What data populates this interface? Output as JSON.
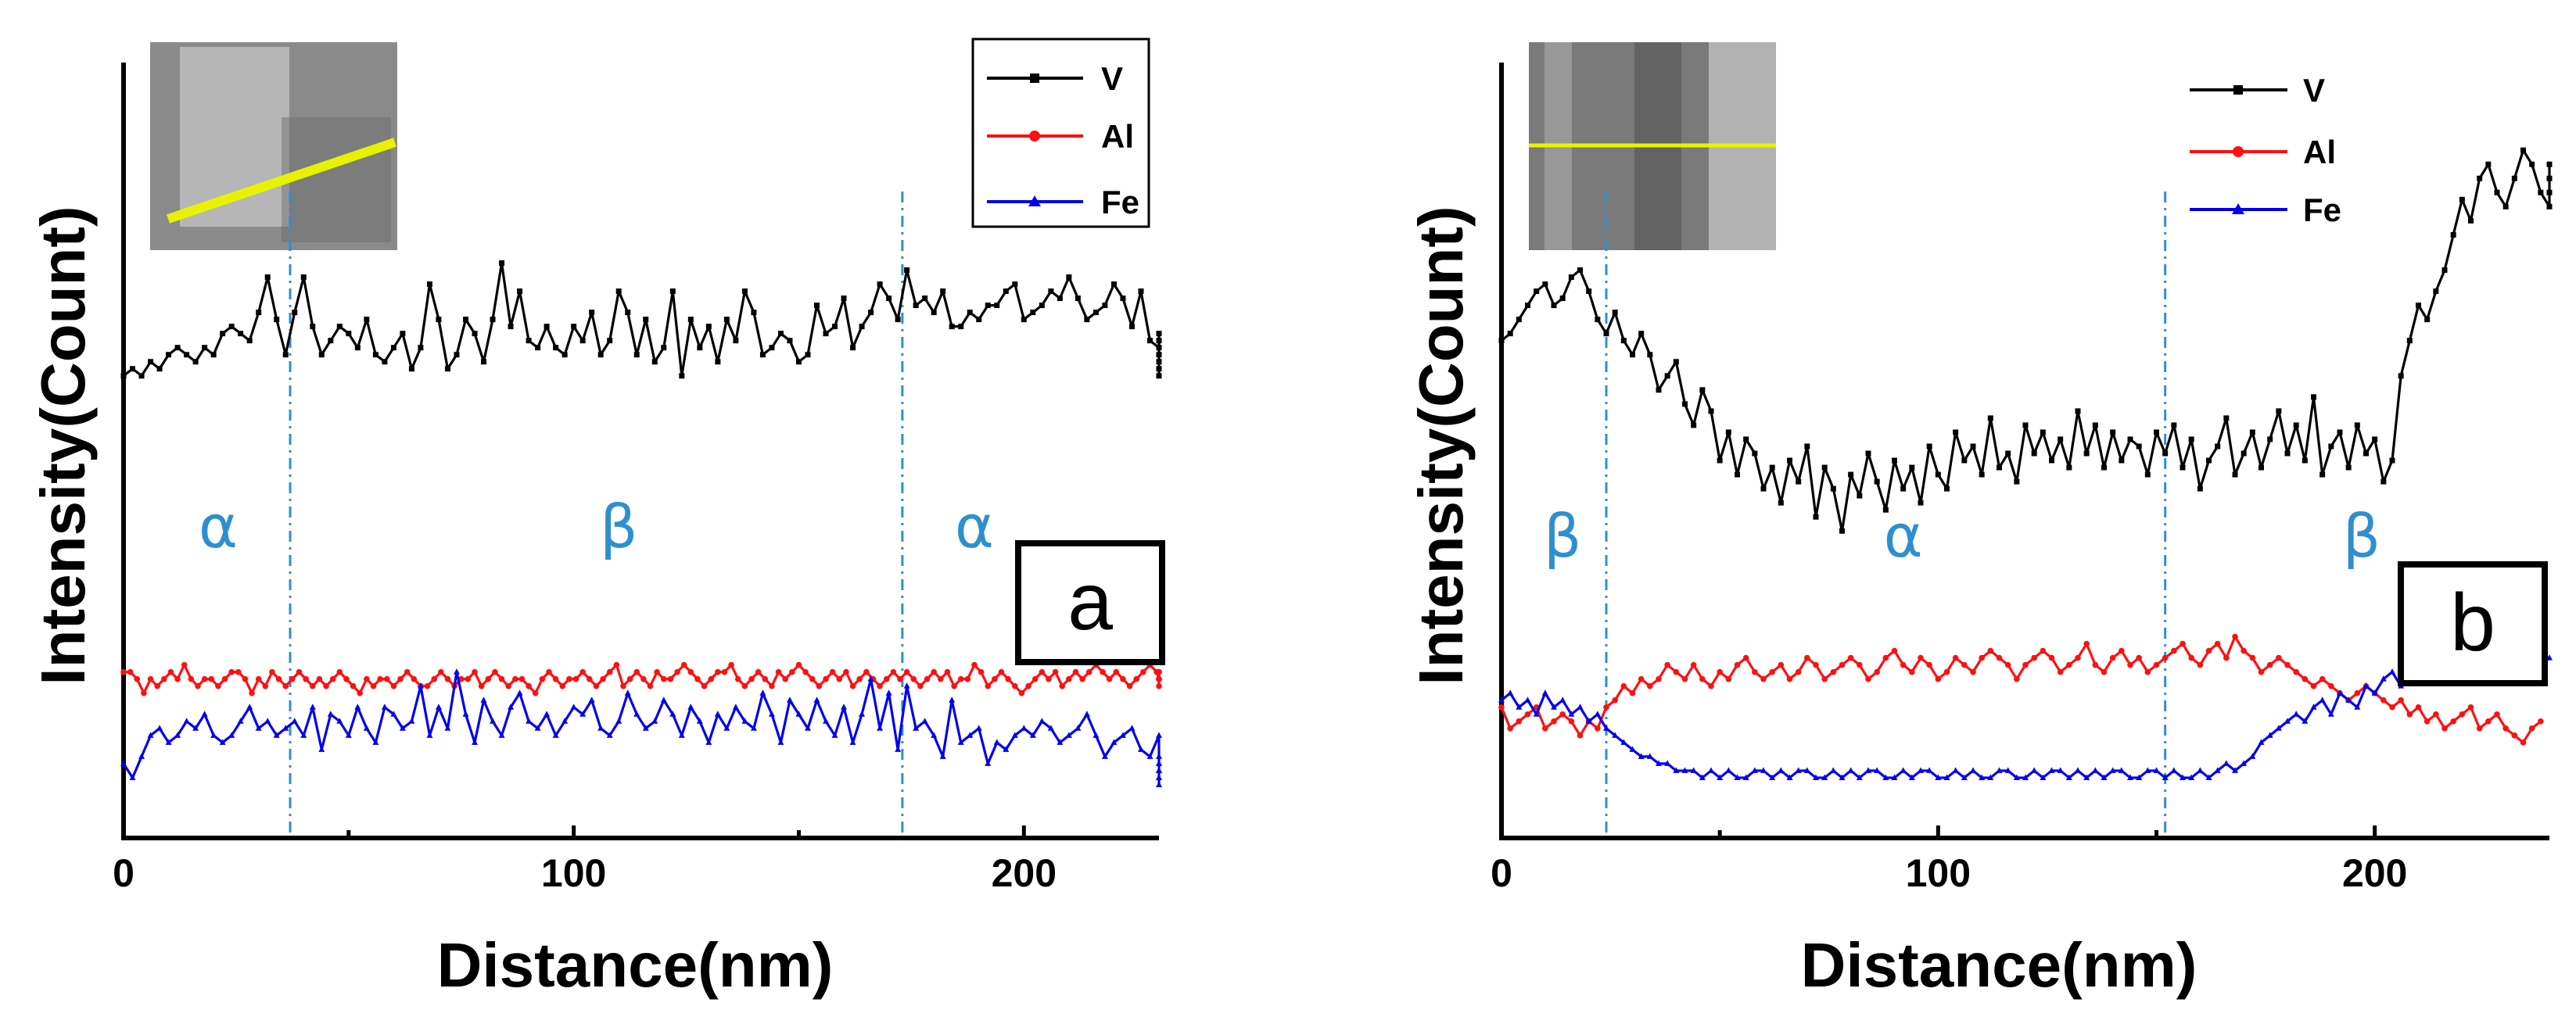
{
  "colors": {
    "V": "#000000",
    "Al": "#ff1010",
    "Fe": "#0000ee",
    "boundary": "#2e8fd0",
    "phase_text": "#2e8fd0",
    "scan_line": "#e8f200"
  },
  "chart_data": [
    {
      "type": "line",
      "panel_label": "a",
      "xlabel": "Distance(nm)",
      "ylabel": "Intensity(Count)",
      "xlim": [
        0,
        230
      ],
      "ylim": [
        0,
        100
      ],
      "xticks": [
        "0",
        "100",
        "200"
      ],
      "y_tick_labels": false,
      "legend": {
        "position": "top-right",
        "entries": [
          "V",
          "Al",
          "Fe"
        ]
      },
      "boundaries_nm": [
        37,
        173
      ],
      "phase_labels": [
        "α",
        "β",
        "α"
      ],
      "phase_label_positions_nm": [
        21,
        110,
        189
      ],
      "inset": {
        "description_icon": "stem-image-with-diagonal-line-scan"
      },
      "series": [
        {
          "name": "V",
          "x_range": [
            0,
            230
          ],
          "step": 2,
          "values": [
            60,
            61,
            60,
            62,
            61,
            63,
            64,
            63,
            62,
            64,
            63,
            66,
            67,
            66,
            65,
            69,
            74,
            68,
            63,
            69,
            74,
            67,
            63,
            65,
            67,
            66,
            64,
            68,
            63,
            62,
            64,
            66,
            61,
            64,
            73,
            68,
            61,
            63,
            68,
            66,
            62,
            68,
            76,
            67,
            72,
            65,
            64,
            67,
            64,
            63,
            67,
            65,
            69,
            63,
            65,
            72,
            69,
            63,
            68,
            62,
            64,
            72,
            60,
            68,
            64,
            67,
            62,
            68,
            65,
            72,
            69,
            63,
            64,
            66,
            65,
            62,
            63,
            70,
            66,
            67,
            71,
            64,
            67,
            69,
            73,
            71,
            68,
            75,
            70,
            71,
            69,
            72,
            67,
            67,
            69,
            68,
            70,
            70,
            72,
            73,
            68,
            69,
            70,
            72,
            71,
            74,
            71,
            68,
            69,
            70,
            73,
            71,
            67,
            72,
            65,
            64,
            61,
            60,
            65,
            62,
            66,
            63
          ]
        },
        {
          "name": "Al",
          "x_range": [
            0,
            230
          ],
          "step": 1.5,
          "values": [
            18,
            18,
            17,
            15,
            17,
            16,
            17,
            18,
            17,
            19,
            17,
            16,
            17,
            17,
            16,
            17,
            18,
            18,
            17,
            15,
            17,
            16,
            18,
            17,
            16,
            17,
            18,
            17,
            16,
            17,
            16,
            17,
            18,
            17,
            16,
            15,
            17,
            16,
            17,
            17,
            16,
            17,
            18,
            17,
            16,
            16,
            17,
            18,
            17,
            16,
            17,
            17,
            18,
            16,
            17,
            18,
            17,
            16,
            17,
            17,
            16,
            15,
            17,
            18,
            17,
            16,
            17,
            17,
            18,
            17,
            16,
            17,
            18,
            19,
            16,
            17,
            18,
            17,
            16,
            18,
            17,
            17,
            18,
            19,
            18,
            17,
            16,
            17,
            18,
            18,
            19,
            17,
            16,
            17,
            18,
            17,
            16,
            18,
            17,
            18,
            19,
            18,
            17,
            16,
            17,
            18,
            17,
            18,
            16,
            17,
            18,
            17,
            16,
            17,
            18,
            17,
            18,
            17,
            16,
            17,
            18,
            17,
            18,
            16,
            17,
            17,
            19,
            18,
            16,
            17,
            18,
            17,
            16,
            15,
            16,
            17,
            18,
            17,
            18,
            16,
            17,
            18,
            17,
            18,
            19,
            18,
            17,
            18,
            17,
            16,
            17,
            18,
            19,
            18,
            17,
            18,
            17,
            17,
            16,
            17,
            18
          ]
        },
        {
          "name": "Fe",
          "x_range": [
            0,
            230
          ],
          "step": 2,
          "values": [
            5,
            3,
            6,
            9,
            10,
            8,
            9,
            11,
            10,
            12,
            9,
            8,
            9,
            11,
            13,
            10,
            11,
            9,
            10,
            11,
            9,
            13,
            7,
            12,
            11,
            9,
            13,
            10,
            8,
            13,
            12,
            10,
            11,
            16,
            9,
            13,
            10,
            18,
            12,
            8,
            14,
            11,
            9,
            13,
            15,
            11,
            10,
            12,
            9,
            11,
            13,
            12,
            14,
            10,
            9,
            11,
            15,
            12,
            10,
            11,
            14,
            12,
            9,
            13,
            11,
            8,
            12,
            10,
            13,
            11,
            10,
            15,
            12,
            8,
            14,
            12,
            10,
            14,
            11,
            9,
            13,
            8,
            12,
            17,
            10,
            15,
            7,
            16,
            10,
            11,
            9,
            6,
            14,
            8,
            9,
            10,
            5,
            8,
            7,
            9,
            10,
            9,
            11,
            10,
            8,
            9,
            10,
            12,
            9,
            6,
            8,
            9,
            10,
            7,
            6,
            9,
            5,
            4,
            3,
            2,
            3,
            4,
            5,
            6
          ]
        }
      ]
    },
    {
      "type": "line",
      "panel_label": "b",
      "xlabel": "Distance(nm)",
      "ylabel": "Intensity(Count)",
      "xlim": [
        0,
        240
      ],
      "ylim": [
        0,
        100
      ],
      "xticks": [
        "0",
        "100",
        "200"
      ],
      "y_tick_labels": false,
      "legend": {
        "position": "top-right",
        "entries": [
          "V",
          "Al",
          "Fe"
        ]
      },
      "boundaries_nm": [
        24,
        152
      ],
      "phase_labels": [
        "β",
        "α",
        "β"
      ],
      "phase_label_positions_nm": [
        14,
        92,
        197
      ],
      "inset": {
        "description_icon": "stem-image-with-horizontal-line-scan"
      },
      "series": [
        {
          "name": "V",
          "x_range": [
            0,
            240
          ],
          "step": 2,
          "values": [
            65,
            66,
            68,
            70,
            72,
            73,
            70,
            71,
            74,
            75,
            72,
            68,
            66,
            69,
            65,
            63,
            66,
            63,
            58,
            60,
            62,
            56,
            53,
            58,
            55,
            48,
            52,
            46,
            51,
            49,
            44,
            47,
            42,
            48,
            45,
            50,
            40,
            47,
            44,
            38,
            46,
            43,
            49,
            45,
            41,
            48,
            44,
            47,
            42,
            50,
            46,
            44,
            52,
            48,
            50,
            46,
            54,
            47,
            49,
            45,
            53,
            49,
            52,
            48,
            51,
            47,
            55,
            49,
            53,
            47,
            52,
            48,
            51,
            50,
            46,
            52,
            49,
            53,
            47,
            51,
            44,
            48,
            50,
            54,
            46,
            49,
            52,
            47,
            51,
            55,
            49,
            53,
            48,
            57,
            46,
            50,
            52,
            47,
            53,
            49,
            51,
            45,
            48,
            60,
            65,
            70,
            68,
            72,
            75,
            80,
            85,
            82,
            88,
            90,
            86,
            84,
            88,
            92,
            90,
            86,
            84,
            88,
            86,
            90
          ]
        },
        {
          "name": "Al",
          "x_range": [
            0,
            240
          ],
          "step": 2,
          "values": [
            13,
            10,
            11,
            12,
            13,
            10,
            11,
            12,
            11,
            9,
            11,
            10,
            13,
            14,
            16,
            15,
            17,
            16,
            17,
            19,
            18,
            17,
            19,
            17,
            16,
            18,
            17,
            19,
            20,
            18,
            17,
            18,
            19,
            17,
            18,
            20,
            19,
            17,
            18,
            19,
            20,
            19,
            17,
            18,
            20,
            21,
            19,
            18,
            20,
            19,
            17,
            18,
            20,
            19,
            18,
            20,
            21,
            20,
            19,
            17,
            19,
            20,
            21,
            20,
            18,
            19,
            20,
            22,
            19,
            18,
            20,
            21,
            19,
            20,
            18,
            19,
            20,
            21,
            22,
            20,
            19,
            21,
            22,
            20,
            23,
            21,
            20,
            18,
            19,
            20,
            19,
            18,
            17,
            16,
            17,
            16,
            15,
            14,
            15,
            16,
            15,
            14,
            13,
            14,
            12,
            13,
            11,
            12,
            10,
            11,
            12,
            13,
            10,
            11,
            12,
            10,
            9,
            8,
            10,
            11
          ]
        },
        {
          "name": "Fe",
          "x_range": [
            0,
            240
          ],
          "step": 2,
          "values": [
            14,
            15,
            13,
            14,
            12,
            15,
            13,
            14,
            12,
            13,
            11,
            12,
            10,
            9,
            8,
            7,
            6,
            6,
            5,
            5,
            4,
            4,
            4,
            3,
            4,
            3,
            4,
            3,
            3,
            4,
            4,
            3,
            4,
            3,
            4,
            4,
            3,
            3,
            4,
            3,
            4,
            3,
            4,
            4,
            3,
            3,
            4,
            3,
            4,
            4,
            3,
            3,
            4,
            3,
            4,
            3,
            3,
            4,
            4,
            3,
            3,
            4,
            3,
            4,
            4,
            3,
            4,
            3,
            4,
            3,
            4,
            4,
            3,
            3,
            4,
            4,
            3,
            4,
            3,
            3,
            4,
            3,
            4,
            5,
            4,
            5,
            6,
            8,
            9,
            10,
            11,
            12,
            11,
            13,
            14,
            12,
            15,
            14,
            13,
            16,
            15,
            17,
            18,
            16,
            19,
            18,
            17,
            19,
            18,
            20,
            19,
            18,
            20,
            19,
            21,
            20,
            19,
            20,
            18,
            19,
            20
          ]
        }
      ]
    }
  ]
}
